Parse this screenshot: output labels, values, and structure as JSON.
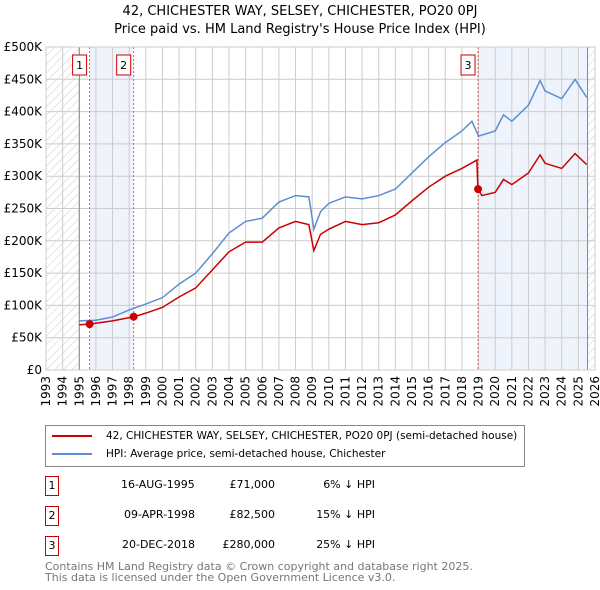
{
  "title": "42, CHICHESTER WAY, SELSEY, CHICHESTER, PO20 0PJ",
  "subtitle": "Price paid vs. HM Land Registry's House Price Index (HPI)",
  "chart_data": {
    "type": "line",
    "xlim": [
      1993,
      2026
    ],
    "ylim": [
      0,
      500000
    ],
    "y_ticks": [
      0,
      50000,
      100000,
      150000,
      200000,
      250000,
      300000,
      350000,
      400000,
      450000,
      500000
    ],
    "y_tick_labels": [
      "£0",
      "£50K",
      "£100K",
      "£150K",
      "£200K",
      "£250K",
      "£300K",
      "£350K",
      "£400K",
      "£450K",
      "£500K"
    ],
    "x_ticks": [
      1993,
      1994,
      1995,
      1996,
      1997,
      1998,
      1999,
      2000,
      2001,
      2002,
      2003,
      2004,
      2005,
      2006,
      2007,
      2008,
      2009,
      2010,
      2011,
      2012,
      2013,
      2014,
      2015,
      2016,
      2017,
      2018,
      2019,
      2020,
      2021,
      2022,
      2023,
      2024,
      2025,
      2026
    ],
    "grid": true,
    "series": [
      {
        "name": "42, CHICHESTER WAY, SELSEY, CHICHESTER, PO20 0PJ (semi-detached house)",
        "color": "#cc0000",
        "x": [
          1995,
          1995.6,
          1997,
          1998.3,
          1999,
          2000,
          2001,
          2002,
          2003,
          2004,
          2005,
          2006,
          2007,
          2008,
          2008.8,
          2009.1,
          2009.5,
          2010,
          2011,
          2012,
          2013,
          2014,
          2015,
          2016,
          2017,
          2018,
          2018.9,
          2018.96,
          2019.2,
          2020,
          2020.5,
          2021,
          2022,
          2022.7,
          2023,
          2024,
          2024.8,
          2025.5
        ],
        "y": [
          70000,
          71000,
          76000,
          82500,
          88000,
          97000,
          113000,
          127000,
          155000,
          183000,
          198000,
          198000,
          220000,
          230000,
          225000,
          185000,
          210000,
          218000,
          230000,
          225000,
          228000,
          240000,
          262000,
          283000,
          300000,
          312000,
          325000,
          280000,
          270000,
          275000,
          295000,
          287000,
          305000,
          333000,
          320000,
          312000,
          335000,
          318000
        ]
      },
      {
        "name": "HPI: Average price, semi-detached house, Chichester",
        "color": "#5b8fd0",
        "x": [
          1995,
          1996,
          1997,
          1998,
          1999,
          2000,
          2001,
          2002,
          2003,
          2004,
          2005,
          2006,
          2007,
          2008,
          2008.8,
          2009.1,
          2009.5,
          2010,
          2011,
          2012,
          2013,
          2014,
          2015,
          2016,
          2017,
          2018,
          2018.6,
          2019,
          2020,
          2020.5,
          2021,
          2022,
          2022.7,
          2023,
          2024,
          2024.8,
          2025.5
        ],
        "y": [
          76000,
          77000,
          82000,
          93000,
          102000,
          112000,
          133000,
          150000,
          180000,
          212000,
          230000,
          235000,
          260000,
          270000,
          268000,
          218000,
          245000,
          258000,
          268000,
          265000,
          270000,
          280000,
          305000,
          330000,
          352000,
          370000,
          385000,
          362000,
          370000,
          395000,
          385000,
          410000,
          448000,
          432000,
          420000,
          450000,
          422000
        ]
      }
    ],
    "sales": [
      {
        "label": "1",
        "x": 1995.62,
        "price": 71000,
        "date": "16-AUG-1995",
        "price_text": "£71,000",
        "hpi_text": "6% ↓ HPI"
      },
      {
        "label": "2",
        "x": 1998.27,
        "price": 82500,
        "date": "09-APR-1998",
        "price_text": "£82,500",
        "hpi_text": "15% ↓ HPI"
      },
      {
        "label": "3",
        "x": 2018.97,
        "price": 280000,
        "date": "20-DEC-2018",
        "price_text": "£280,000",
        "hpi_text": "25% ↓ HPI"
      }
    ]
  },
  "footer": [
    "Contains HM Land Registry data © Crown copyright and database right 2025.",
    "This data is licensed under the Open Government Licence v3.0."
  ]
}
